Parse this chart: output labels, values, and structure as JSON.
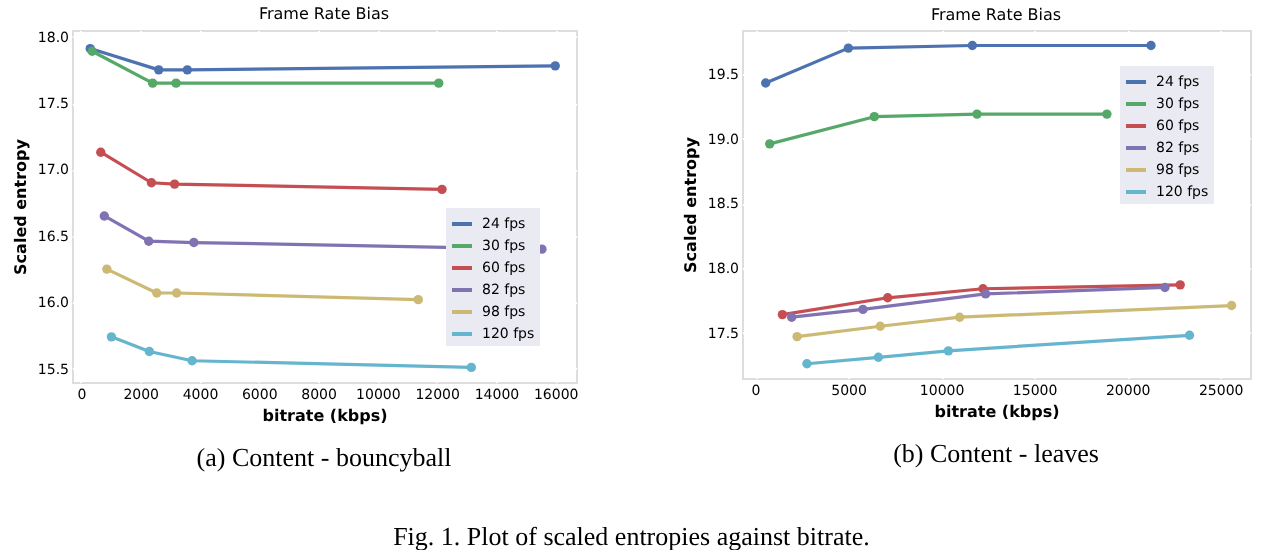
{
  "chart_data": [
    {
      "type": "line",
      "title": "Frame Rate Bias",
      "xlabel": "bitrate (kbps)",
      "ylabel": "Scaled entropy",
      "xlim": [
        -300,
        16700
      ],
      "xticks": [
        0,
        2000,
        4000,
        6000,
        8000,
        10000,
        12000,
        14000,
        16000
      ],
      "ylim": [
        15.4,
        18.05
      ],
      "yticks": [
        15.5,
        {
          "value": 16,
          "label": "16.0"
        },
        16.5,
        {
          "value": 17,
          "label": "17.0"
        },
        17.5,
        {
          "value": 18,
          "label": "18.0"
        }
      ],
      "grid": true,
      "legend": "bottom right",
      "marker": "circle",
      "line_style": "solid",
      "annotations": [
        "(a) Content - bouncyball"
      ],
      "series": [
        {
          "name": "24 fps",
          "color": "#4c72b0",
          "x": [
            314,
            2625,
            3590,
            16000
          ],
          "values": [
            17.91,
            17.75,
            17.75,
            17.78
          ]
        },
        {
          "name": "30 fps",
          "color": "#55a868",
          "x": [
            380,
            2420,
            3210,
            12070
          ],
          "values": [
            17.89,
            17.65,
            17.65,
            17.65
          ]
        },
        {
          "name": "60 fps",
          "color": "#c44e52",
          "x": [
            670,
            2380,
            3160,
            12180
          ],
          "values": [
            17.13,
            16.9,
            16.89,
            16.85
          ]
        },
        {
          "name": "82 fps",
          "color": "#8172b2",
          "x": [
            790,
            2290,
            3810,
            15550
          ],
          "values": [
            16.65,
            16.46,
            16.45,
            16.4
          ]
        },
        {
          "name": "98 fps",
          "color": "#ccb974",
          "x": [
            875,
            2560,
            3230,
            11380
          ],
          "values": [
            16.25,
            16.07,
            16.07,
            16.02
          ]
        },
        {
          "name": "120 fps",
          "color": "#64b5cd",
          "x": [
            1030,
            2310,
            3750,
            13170
          ],
          "values": [
            15.74,
            15.63,
            15.56,
            15.51
          ]
        }
      ]
    },
    {
      "type": "line",
      "title": "Frame Rate Bias",
      "xlabel": "bitrate (kbps)",
      "ylabel": "Scaled entropy",
      "xlim": [
        -700,
        26600
      ],
      "xticks": [
        0,
        5000,
        10000,
        15000,
        20000,
        25000
      ],
      "ylim": [
        17.15,
        19.84
      ],
      "yticks": [
        17.5,
        {
          "value": 18,
          "label": "18.0"
        },
        18.5,
        {
          "value": 19,
          "label": "19.0"
        },
        19.5
      ],
      "grid": true,
      "legend": "top right",
      "marker": "circle",
      "line_style": "solid",
      "annotations": [
        "(b) Content - leaves",
        "Fig. 1.  Plot of scaled entropies against bitrate."
      ],
      "series": [
        {
          "name": "24 fps",
          "color": "#4c72b0",
          "x": [
            573,
            5015,
            11680,
            21280
          ],
          "values": [
            19.43,
            19.7,
            19.72,
            19.72
          ]
        },
        {
          "name": "30 fps",
          "color": "#55a868",
          "x": [
            790,
            6410,
            11930,
            18910
          ],
          "values": [
            18.96,
            19.17,
            19.19,
            19.19
          ]
        },
        {
          "name": "60 fps",
          "color": "#c44e52",
          "x": [
            1470,
            7130,
            12250,
            22850
          ],
          "values": [
            17.64,
            17.77,
            17.84,
            17.87
          ]
        },
        {
          "name": "82 fps",
          "color": "#8172b2",
          "x": [
            1970,
            5800,
            12390,
            22030
          ],
          "values": [
            17.62,
            17.68,
            17.8,
            17.85
          ]
        },
        {
          "name": "98 fps",
          "color": "#ccb974",
          "x": [
            2260,
            6730,
            11000,
            25610
          ],
          "values": [
            17.47,
            17.55,
            17.62,
            17.71
          ]
        },
        {
          "name": "120 fps",
          "color": "#64b5cd",
          "x": [
            2790,
            6630,
            10390,
            23350
          ],
          "values": [
            17.26,
            17.31,
            17.36,
            17.48
          ]
        }
      ]
    }
  ]
}
